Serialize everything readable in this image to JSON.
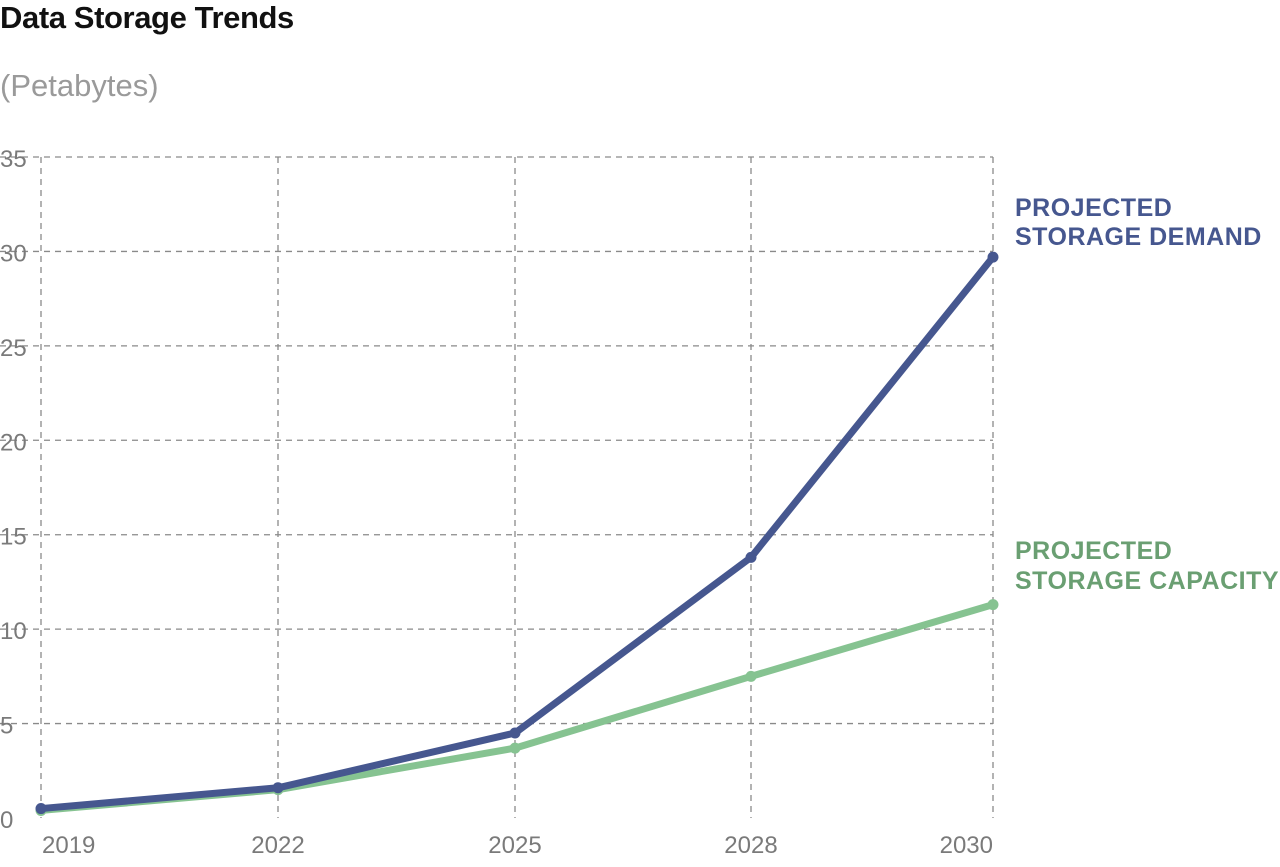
{
  "chart_data": {
    "type": "line",
    "title": "Data Storage Trends",
    "subtitle": "(Petabytes)",
    "xlabel": "",
    "ylabel": "",
    "x": [
      2019,
      2022,
      2025,
      2028,
      2030
    ],
    "ylim": [
      0,
      35
    ],
    "yticks": [
      0,
      5,
      10,
      15,
      20,
      25,
      30,
      35
    ],
    "xticks": [
      "2019",
      "2022",
      "2025",
      "2028",
      "2030"
    ],
    "grid": true,
    "legend": "direct labels at right end of lines",
    "series": [
      {
        "name": "PROJECTED STORAGE DEMAND",
        "label_lines": [
          "PROJECTED",
          "STORAGE DEMAND"
        ],
        "color": "#46578f",
        "values": [
          0.5,
          1.6,
          4.5,
          13.8,
          29.7
        ]
      },
      {
        "name": "PROJECTED STORAGE CAPACITY",
        "label_lines": [
          "PROJECTED",
          "STORAGE CAPACITY"
        ],
        "color": "#86c391",
        "label_color": "#6a9f72",
        "values": [
          0.4,
          1.5,
          3.7,
          7.5,
          11.3
        ]
      }
    ]
  }
}
